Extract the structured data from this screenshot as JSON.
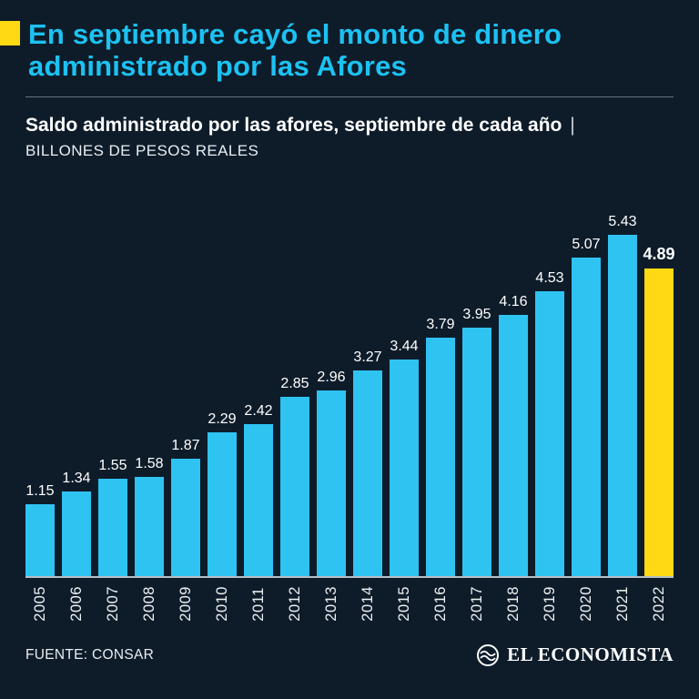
{
  "header": {
    "title": "En septiembre cayó el monto de dinero administrado por las Afores",
    "accent_color": "#ffd913",
    "title_color": "#1cc2f2"
  },
  "subtitle": {
    "bold": "Saldo administrado por las afores, septiembre de cada año",
    "separator": "|",
    "note": "BILLONES DE PESOS REALES"
  },
  "chart_data": {
    "type": "bar",
    "title": "Saldo administrado por las afores, septiembre de cada año",
    "ylabel": "Billones de pesos reales",
    "xlabel": "",
    "categories": [
      "2005",
      "2006",
      "2007",
      "2008",
      "2009",
      "2010",
      "2011",
      "2012",
      "2013",
      "2014",
      "2015",
      "2016",
      "2017",
      "2018",
      "2019",
      "2020",
      "2021",
      "2022"
    ],
    "values": [
      1.15,
      1.34,
      1.55,
      1.58,
      1.87,
      2.29,
      2.42,
      2.85,
      2.96,
      3.27,
      3.44,
      3.79,
      3.95,
      4.16,
      4.53,
      5.07,
      5.43,
      4.89
    ],
    "highlight_index": 17,
    "bar_color": "#2fc3f2",
    "highlight_color": "#ffd913",
    "ylim": [
      0,
      5.43
    ],
    "grid": false,
    "value_labels": true,
    "legend": "none"
  },
  "footer": {
    "source": "FUENTE: CONSAR",
    "brand": "EL ECONOMISTA"
  },
  "colors": {
    "background": "#0e1c2a",
    "axis_line": "#b5bfc6",
    "text": "#ffffff"
  }
}
